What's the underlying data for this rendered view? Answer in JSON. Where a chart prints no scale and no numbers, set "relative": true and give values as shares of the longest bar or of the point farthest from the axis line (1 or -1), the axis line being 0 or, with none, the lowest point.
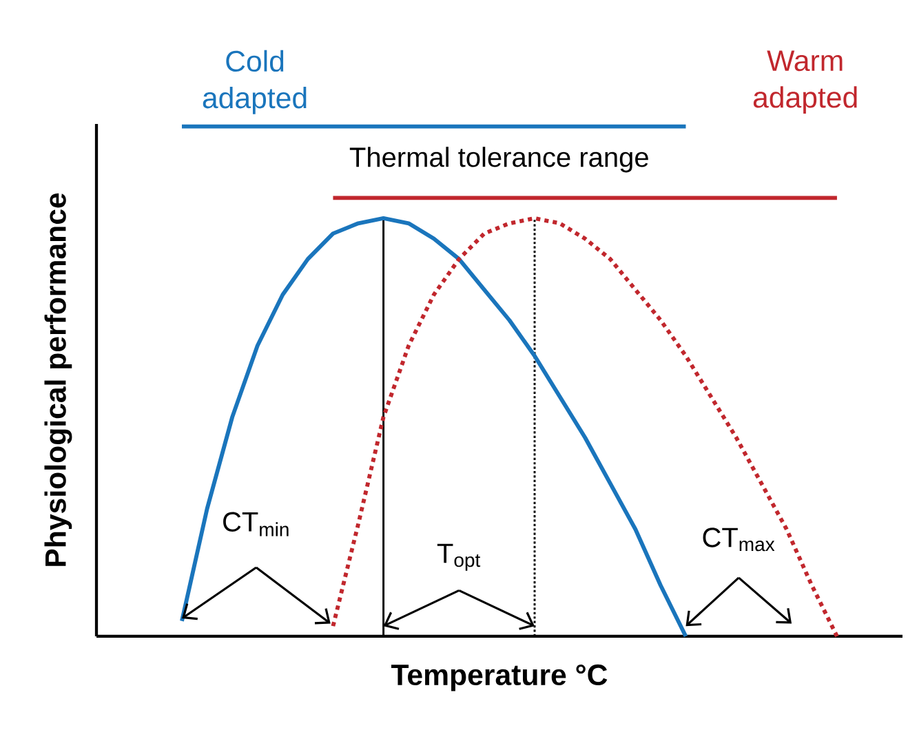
{
  "chart_data": {
    "type": "line",
    "relative": true,
    "xlabel": "Temperature °C",
    "ylabel": "Physiological performance",
    "tick_labels": false,
    "marker": "none",
    "categories": [
      null,
      null,
      null,
      null,
      null,
      null,
      null,
      null,
      null,
      null,
      null,
      null,
      null,
      null,
      null,
      null,
      null,
      null,
      null,
      null,
      null,
      null,
      null,
      null,
      null,
      null,
      null
    ],
    "series": [
      {
        "name": "Cold adapted",
        "color": "#1a75bc",
        "line_style": "solid",
        "values": [
          0.03,
          0.25,
          0.43,
          0.57,
          0.67,
          0.74,
          0.79,
          0.81,
          0.82,
          0.81,
          0.78,
          0.74,
          0.68,
          0.62,
          0.55,
          0.47,
          0.39,
          0.3,
          0.21,
          0.1,
          0,
          null,
          null,
          null,
          null,
          null,
          null
        ]
      },
      {
        "name": "Warm adapted",
        "color": "#c1272d",
        "line_style": "dotted",
        "values": [
          null,
          null,
          null,
          null,
          null,
          null,
          0.02,
          0.22,
          0.43,
          0.57,
          0.67,
          0.74,
          0.79,
          0.81,
          0.82,
          0.81,
          0.78,
          0.74,
          0.68,
          0.62,
          0.55,
          0.47,
          0.39,
          0.3,
          0.21,
          0.1,
          0
        ]
      },
      {
        "color": "#1a75bc",
        "line_style": "solid",
        "values": [
          1,
          1,
          1,
          1,
          1,
          1,
          1,
          1,
          1,
          1,
          1,
          1,
          1,
          1,
          1,
          1,
          1,
          1,
          1,
          1,
          1,
          null,
          null,
          null,
          null,
          null,
          null
        ]
      },
      {
        "color": "#c1272d",
        "line_style": "solid",
        "values": [
          null,
          null,
          null,
          null,
          null,
          null,
          0.86,
          0.86,
          0.86,
          0.86,
          0.86,
          0.86,
          0.86,
          0.86,
          0.86,
          0.86,
          0.86,
          0.86,
          0.86,
          0.86,
          0.86,
          0.86,
          0.86,
          0.86,
          0.86,
          0.86,
          0.86
        ]
      }
    ],
    "annotations": [
      "Thermal tolerance range",
      "CT$_{min}$",
      "T$_{opt}$",
      "CT$_{max}$"
    ]
  }
}
